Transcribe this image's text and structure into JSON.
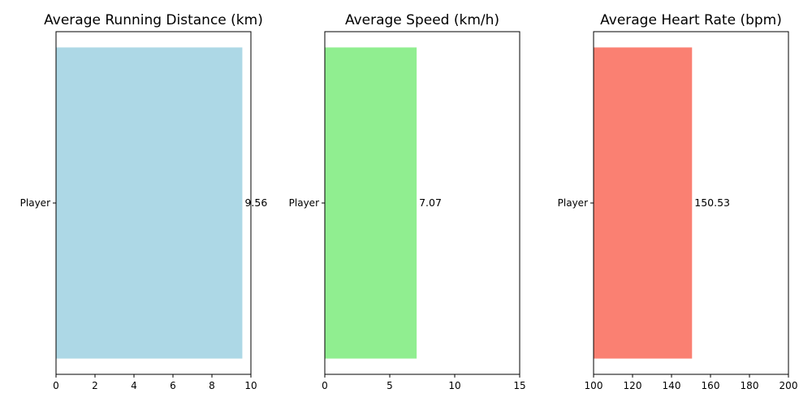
{
  "chart_data": [
    {
      "type": "bar",
      "orientation": "horizontal",
      "title": "Average Running Distance (km)",
      "categories": [
        "Player"
      ],
      "values": [
        9.56
      ],
      "value_labels": [
        "9.56"
      ],
      "xlim": [
        0,
        10
      ],
      "xticks": [
        0,
        2,
        4,
        6,
        8,
        10
      ],
      "color": "#add8e6",
      "grid": false,
      "legend": "none"
    },
    {
      "type": "bar",
      "orientation": "horizontal",
      "title": "Average Speed (km/h)",
      "categories": [
        "Player"
      ],
      "values": [
        7.07
      ],
      "value_labels": [
        "7.07"
      ],
      "xlim": [
        0,
        15
      ],
      "xticks": [
        0,
        5,
        10,
        15
      ],
      "color": "#90ee90",
      "grid": false,
      "legend": "none"
    },
    {
      "type": "bar",
      "orientation": "horizontal",
      "title": "Average Heart Rate (bpm)",
      "categories": [
        "Player"
      ],
      "values": [
        150.53
      ],
      "value_labels": [
        "150.53"
      ],
      "xlim": [
        100,
        200
      ],
      "xticks": [
        100,
        120,
        140,
        160,
        180,
        200
      ],
      "color": "#fa8072",
      "grid": false,
      "legend": "none"
    }
  ]
}
